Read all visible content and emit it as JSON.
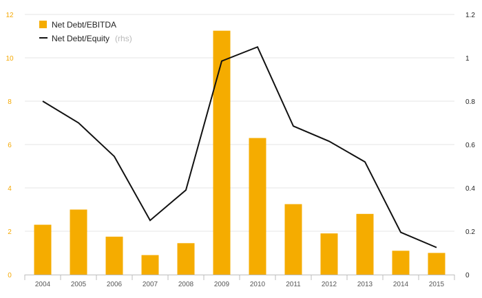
{
  "chart_data": {
    "type": "bar",
    "categories": [
      "2004",
      "2005",
      "2006",
      "2007",
      "2008",
      "2009",
      "2010",
      "2011",
      "2012",
      "2013",
      "2014",
      "2015"
    ],
    "series": [
      {
        "name": "Net Debt/EBITDA",
        "type": "bar",
        "axis": "left",
        "color": "#f5ac00",
        "values": [
          2.3,
          3.0,
          1.75,
          0.9,
          1.45,
          11.25,
          6.3,
          3.25,
          1.9,
          2.8,
          1.1,
          1.0
        ]
      },
      {
        "name": "Net Debt/Equity",
        "name_note": "(rhs)",
        "type": "line",
        "axis": "right",
        "color": "#111111",
        "values": [
          0.8,
          0.7,
          0.545,
          0.25,
          0.39,
          0.985,
          1.05,
          0.685,
          0.615,
          0.52,
          0.195,
          0.125
        ]
      }
    ],
    "y_left": {
      "ylim": [
        0,
        12
      ],
      "ticks": [
        "0",
        "2",
        "4",
        "6",
        "8",
        "10",
        "12"
      ],
      "tick_color": "#f5a800"
    },
    "y_right": {
      "ylim": [
        0,
        1.2
      ],
      "ticks": [
        "0",
        "0.2",
        "0.4",
        "0.6",
        "0.8",
        "1",
        "1.2"
      ],
      "tick_color": "#222222"
    },
    "title": "",
    "xlabel": "",
    "ylabel": "",
    "grid": true,
    "legend_position": "top-left"
  }
}
